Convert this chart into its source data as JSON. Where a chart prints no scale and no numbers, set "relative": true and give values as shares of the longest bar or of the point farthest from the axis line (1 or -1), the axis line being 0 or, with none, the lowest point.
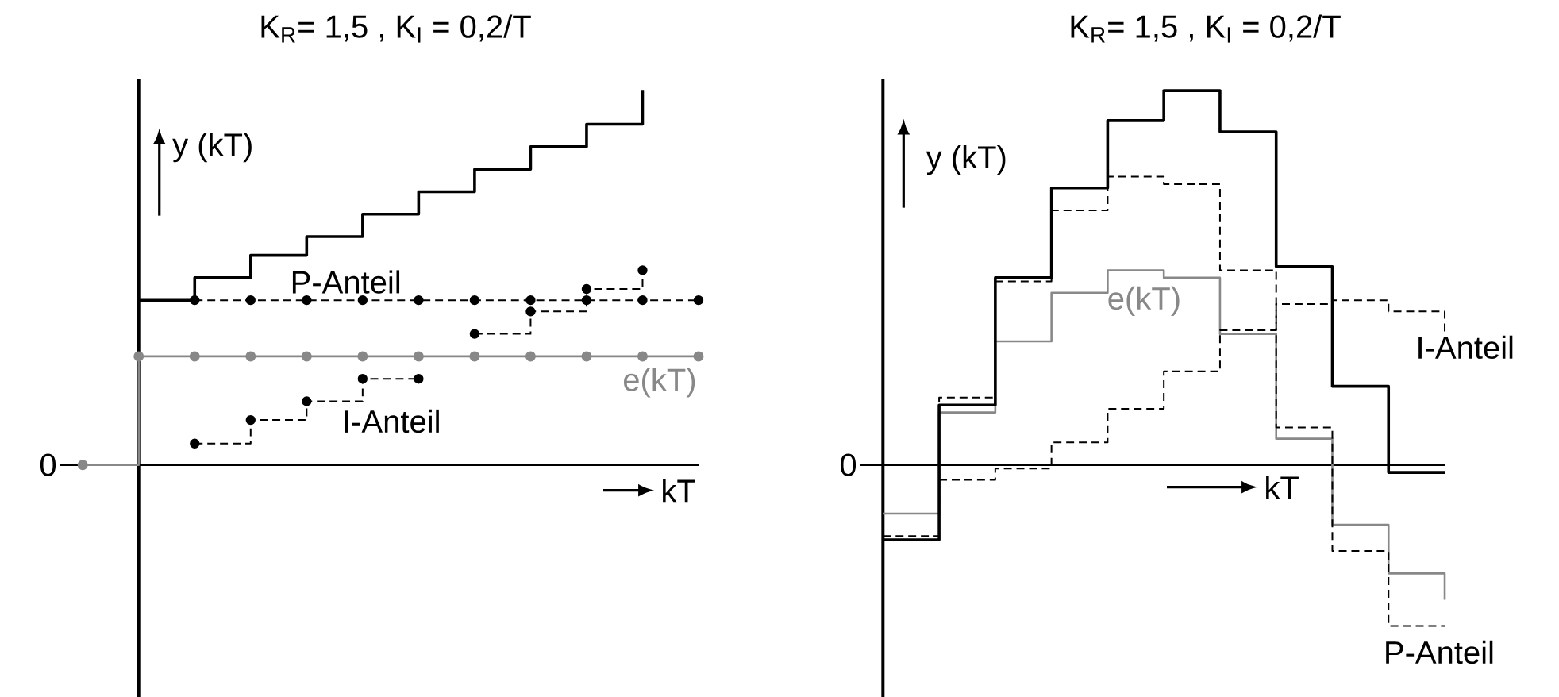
{
  "chart_data": [
    {
      "type": "step",
      "title": "K$_{R}$= 1,5 ,  K$_{I}$ = 0,2/T",
      "xlabel": "kT",
      "ylabel": "y (kT)",
      "relative": true,
      "annotations": [
        "0"
      ],
      "categories": [
        null,
        null,
        null,
        null,
        null,
        null,
        null,
        null,
        null,
        null,
        null,
        null
      ],
      "series": [
        {
          "color": "#000000",
          "line_style": "solid",
          "marker": "none",
          "values": [
            null,
            0.44,
            0.5,
            0.56,
            0.61,
            0.67,
            0.73,
            0.79,
            0.85,
            0.91,
            1.0,
            null
          ]
        },
        {
          "name": "P-Anteil",
          "color": "#000000",
          "line_style": "dashed",
          "marker": "circle",
          "values": [
            null,
            null,
            0.44,
            0.44,
            0.44,
            0.44,
            0.44,
            0.44,
            0.44,
            0.44,
            0.44,
            0.44
          ]
        },
        {
          "name": "I-Anteil",
          "color": "#000000",
          "line_style": "dashed",
          "marker": "circle",
          "values": [
            null,
            null,
            0.057,
            0.12,
            0.17,
            0.23,
            null,
            0.35,
            0.41,
            0.47,
            0.52,
            null
          ]
        },
        {
          "name": "e(kT)",
          "color": "#888888",
          "line_style": "solid",
          "marker": "circle",
          "values": [
            0,
            0.29,
            0.29,
            0.29,
            0.29,
            0.29,
            0.29,
            0.29,
            0.29,
            0.29,
            0.29,
            0.29
          ]
        }
      ]
    },
    {
      "type": "step",
      "title": "K$_{R}$= 1,5 ,  K$_{I}$ = 0,2/T",
      "xlabel": "kT",
      "ylabel": "y (kT)",
      "relative": true,
      "annotations": [
        "0"
      ],
      "categories": [
        null,
        null,
        null,
        null,
        null,
        null,
        null,
        null,
        null,
        null,
        null
      ],
      "series": [
        {
          "color": "#000000",
          "line_style": "solid",
          "marker": "none",
          "values": [
            -0.2,
            0.16,
            0.5,
            0.74,
            0.92,
            1.0,
            0.89,
            0.53,
            0.21,
            -0.02,
            -0.02
          ]
        },
        {
          "name": "P-Anteil",
          "color": "#000000",
          "line_style": "dashed",
          "marker": "none",
          "values": [
            -0.19,
            0.18,
            0.49,
            0.68,
            0.77,
            0.75,
            0.52,
            0.1,
            -0.23,
            -0.43,
            -0.43
          ]
        },
        {
          "name": "I-Anteil",
          "color": "#000000",
          "line_style": "dashed",
          "marker": "none",
          "values": [
            null,
            -0.04,
            -0.01,
            0.06,
            0.15,
            0.25,
            0.36,
            0.43,
            0.44,
            0.41,
            0.35
          ]
        },
        {
          "name": "e(kT)",
          "color": "#888888",
          "line_style": "solid",
          "marker": "none",
          "values": [
            -0.13,
            0.14,
            0.33,
            0.46,
            0.52,
            0.5,
            0.35,
            0.07,
            -0.16,
            -0.29,
            -0.36
          ]
        }
      ]
    }
  ]
}
